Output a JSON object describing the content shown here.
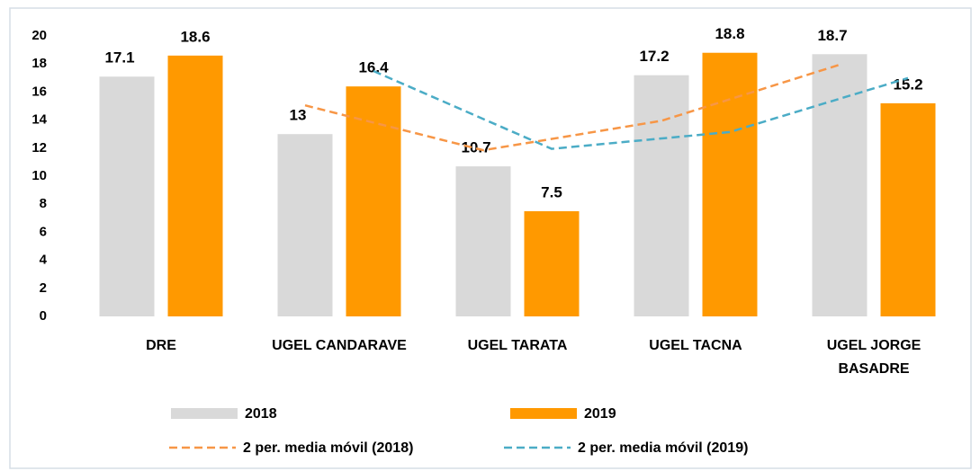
{
  "chart_data": {
    "type": "bar",
    "categories": [
      "DRE",
      "UGEL CANDARAVE",
      "UGEL TARATA",
      "UGEL TACNA",
      "UGEL JORGE BASADRE"
    ],
    "series": [
      {
        "name": "2018",
        "color": "#d9d9d9",
        "values": [
          17.1,
          13,
          10.7,
          17.2,
          18.7
        ]
      },
      {
        "name": "2019",
        "color": "#ff9900",
        "values": [
          18.6,
          16.4,
          7.5,
          18.8,
          15.2
        ]
      },
      {
        "name": "2 per. media móvil (2018)",
        "type": "line",
        "dashed": true,
        "color": "#f79646",
        "values": [
          null,
          15.05,
          11.85,
          13.95,
          17.95
        ]
      },
      {
        "name": "2 per. media móvil (2019)",
        "type": "line",
        "dashed": true,
        "color": "#4bacc6",
        "values": [
          null,
          17.5,
          11.95,
          13.15,
          17
        ]
      }
    ],
    "ylim": [
      0,
      20
    ],
    "yticks": [
      0,
      2,
      4,
      6,
      8,
      10,
      12,
      14,
      16,
      18,
      20
    ],
    "grid": false,
    "legend": "bottom"
  }
}
